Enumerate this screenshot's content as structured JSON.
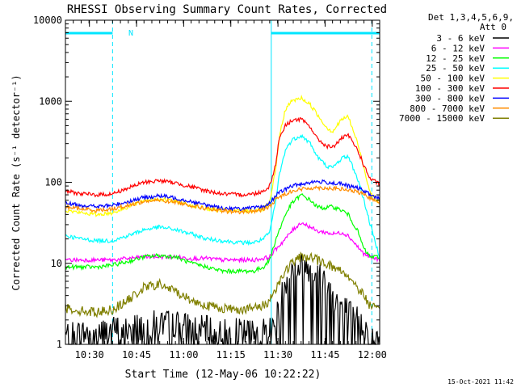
{
  "chart_data": {
    "type": "line",
    "title": "RHESSI Observing Summary Count Rates, Corrected",
    "xlabel": "Start Time (12-May-06 10:22:22)",
    "ylabel": "Corrected Count Rate (s⁻¹ detector⁻¹)",
    "yscale": "log",
    "ylim": [
      1,
      10000
    ],
    "xlim_min": [
      0,
      100
    ],
    "x_tick_labels": [
      "10:30",
      "10:45",
      "11:00",
      "11:15",
      "11:30",
      "11:45",
      "12:00"
    ],
    "x_tick_minutes": [
      7.633,
      22.633,
      37.633,
      52.633,
      67.633,
      82.633,
      97.633
    ],
    "y_tick_labels": [
      "1",
      "10",
      "100",
      "1000",
      "10000"
    ],
    "y_tick_values": [
      1,
      10,
      100,
      1000,
      10000
    ],
    "legend_header": [
      "Det 1,3,4,5,6,9,",
      "Att 0"
    ],
    "legend_position": "outside-right",
    "footer_timestamp": "15-Oct-2021 11:42",
    "night_flag_label": "N",
    "night_intervals_min": [
      [
        0,
        15
      ],
      [
        65.5,
        100
      ]
    ],
    "vertical_markers_min": [
      15,
      65.5,
      97.5
    ],
    "series": [
      {
        "name": "3 - 6 keV",
        "color": "#000000",
        "x": [
          0,
          10,
          15,
          20,
          25,
          30,
          35,
          40,
          45,
          50,
          55,
          60,
          65,
          67,
          70,
          72,
          75,
          78,
          80,
          83,
          85,
          88,
          90,
          93,
          95,
          97,
          100
        ],
        "y": [
          1.3,
          1.4,
          1.5,
          1.6,
          1.7,
          1.8,
          1.8,
          1.6,
          1.5,
          1.4,
          1.4,
          1.4,
          1.5,
          2,
          6,
          8,
          9,
          9,
          8,
          6,
          4,
          3,
          2.5,
          2,
          1.7,
          1.3,
          1
        ]
      },
      {
        "name": "6 - 12 keV",
        "color": "#ff00ff",
        "x": [
          0,
          5,
          10,
          15,
          20,
          25,
          30,
          35,
          40,
          45,
          50,
          55,
          60,
          63,
          65,
          67,
          70,
          72,
          75,
          78,
          80,
          83,
          85,
          88,
          90,
          93,
          95,
          97,
          100
        ],
        "y": [
          11,
          11,
          11,
          11,
          11.5,
          12,
          12,
          12,
          11.5,
          11.5,
          11,
          11,
          11,
          11.5,
          12,
          15,
          20,
          25,
          32,
          28,
          25,
          24,
          23,
          24,
          22,
          16,
          13,
          12,
          11
        ]
      },
      {
        "name": "12 - 25 keV",
        "color": "#00ff00",
        "x": [
          0,
          5,
          10,
          15,
          20,
          25,
          30,
          35,
          40,
          45,
          50,
          55,
          60,
          63,
          65,
          67,
          70,
          72,
          75,
          78,
          80,
          82,
          85,
          88,
          90,
          93,
          95,
          97,
          100
        ],
        "y": [
          9,
          9,
          9,
          9.5,
          10.5,
          12,
          12.5,
          12,
          10,
          9,
          8,
          8,
          8,
          9,
          11,
          20,
          40,
          55,
          70,
          60,
          50,
          48,
          50,
          45,
          40,
          25,
          15,
          12,
          12
        ]
      },
      {
        "name": "25 - 50 keV",
        "color": "#00ffff",
        "x": [
          0,
          5,
          10,
          15,
          20,
          25,
          30,
          35,
          40,
          45,
          50,
          55,
          60,
          63,
          65,
          67,
          68,
          70,
          72,
          75,
          78,
          80,
          83,
          85,
          88,
          90,
          93,
          95,
          97,
          100
        ],
        "y": [
          22,
          20,
          19,
          19,
          22,
          26,
          28,
          26,
          23,
          20,
          19,
          18,
          18,
          20,
          24,
          60,
          120,
          250,
          330,
          380,
          300,
          210,
          160,
          150,
          200,
          210,
          110,
          60,
          30,
          12
        ]
      },
      {
        "name": "50 - 100 keV",
        "color": "#ffff00",
        "x": [
          0,
          5,
          10,
          15,
          20,
          25,
          30,
          35,
          40,
          45,
          50,
          55,
          60,
          63,
          65,
          67,
          68,
          70,
          72,
          75,
          78,
          80,
          83,
          85,
          88,
          90,
          93,
          95,
          97,
          100
        ],
        "y": [
          45,
          42,
          40,
          42,
          50,
          60,
          62,
          58,
          52,
          47,
          45,
          44,
          45,
          47,
          55,
          150,
          350,
          800,
          1000,
          1100,
          900,
          700,
          480,
          420,
          600,
          650,
          300,
          150,
          75,
          55
        ]
      },
      {
        "name": "100 - 300 keV",
        "color": "#ff0000",
        "x": [
          0,
          5,
          10,
          15,
          20,
          25,
          30,
          35,
          40,
          45,
          50,
          55,
          60,
          63,
          65,
          67,
          68,
          70,
          72,
          75,
          78,
          80,
          83,
          85,
          88,
          90,
          93,
          95,
          97,
          100
        ],
        "y": [
          78,
          72,
          70,
          72,
          85,
          100,
          105,
          98,
          88,
          78,
          72,
          70,
          72,
          78,
          90,
          170,
          350,
          500,
          580,
          600,
          480,
          350,
          280,
          270,
          350,
          380,
          250,
          160,
          110,
          95
        ]
      },
      {
        "name": "300 - 800 keV",
        "color": "#0000ff",
        "x": [
          0,
          5,
          10,
          15,
          20,
          25,
          30,
          35,
          40,
          45,
          50,
          55,
          60,
          63,
          65,
          67,
          70,
          72,
          75,
          78,
          80,
          83,
          85,
          88,
          90,
          93,
          95,
          97,
          100
        ],
        "y": [
          55,
          52,
          50,
          52,
          58,
          65,
          68,
          64,
          58,
          52,
          48,
          47,
          48,
          50,
          55,
          70,
          82,
          90,
          95,
          100,
          102,
          100,
          98,
          95,
          90,
          85,
          78,
          70,
          62
        ]
      },
      {
        "name": "800 - 7000 keV",
        "color": "#ff8c00",
        "x": [
          0,
          5,
          10,
          15,
          20,
          25,
          30,
          35,
          40,
          45,
          50,
          55,
          60,
          63,
          65,
          67,
          70,
          72,
          75,
          78,
          80,
          83,
          85,
          88,
          90,
          93,
          95,
          97,
          100
        ],
        "y": [
          50,
          47,
          45,
          47,
          52,
          58,
          60,
          57,
          52,
          47,
          44,
          43,
          44,
          46,
          50,
          62,
          72,
          78,
          82,
          85,
          86,
          85,
          84,
          82,
          80,
          76,
          70,
          64,
          58
        ]
      },
      {
        "name": "7000 - 15000 keV",
        "color": "#808000",
        "x": [
          0,
          5,
          10,
          15,
          20,
          25,
          30,
          35,
          40,
          45,
          50,
          55,
          60,
          63,
          65,
          67,
          70,
          72,
          75,
          78,
          80,
          83,
          85,
          88,
          90,
          93,
          95,
          97,
          100
        ],
        "y": [
          2.8,
          2.6,
          2.5,
          2.7,
          3.5,
          5,
          5.5,
          4.5,
          3.5,
          3,
          2.8,
          2.7,
          2.8,
          3,
          3.5,
          5,
          8,
          10,
          12,
          12,
          11,
          10,
          9,
          8,
          7,
          5,
          4,
          3,
          2.5
        ]
      }
    ]
  }
}
